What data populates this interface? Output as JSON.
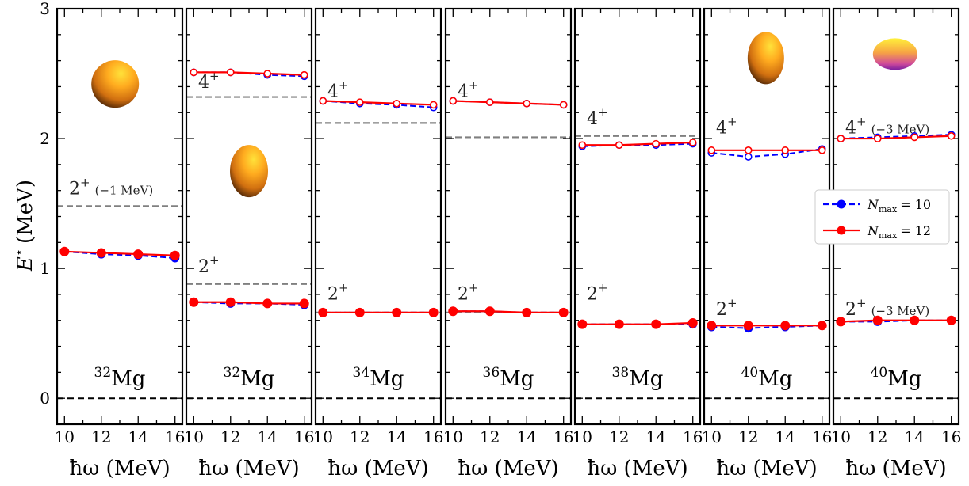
{
  "chart_data": {
    "type": "line",
    "ylabel": "E* (MeV)",
    "ylabel_parts": {
      "symbol": "E",
      "superscript": "⋆",
      "unit": "(MeV)"
    },
    "xlabel": "ħω (MeV)",
    "ylim": [
      -0.2,
      3.0
    ],
    "yticks": [
      "0",
      "1",
      "2",
      "3"
    ],
    "xlim": [
      9.6,
      16.4
    ],
    "xticks": [
      "10",
      "12",
      "14",
      "16"
    ],
    "legend": {
      "placement": "right-middle",
      "entries": [
        {
          "label": "N_max = 10",
          "symbol": "N",
          "subscript": "max",
          "value": "= 10",
          "color": "#0000ff",
          "linestyle": "dashed"
        },
        {
          "label": "N_max = 12",
          "symbol": "N",
          "subscript": "max",
          "value": "= 12",
          "color": "#ff0000",
          "linestyle": "solid"
        }
      ]
    },
    "panels": [
      {
        "nucleus": {
          "mass": "32",
          "element": "Mg"
        },
        "shape": "sphere",
        "experiment": [
          {
            "value": 1.48,
            "color": "#808080"
          }
        ],
        "labels": [
          {
            "text": "2",
            "sup": "+",
            "note": "(−1 MeV)",
            "y": 1.62
          }
        ],
        "series": [
          {
            "name": "N_max = 10",
            "filled": true,
            "x": [
              10,
              12,
              14,
              16
            ],
            "values": [
              1.13,
              1.11,
              1.1,
              1.08
            ]
          },
          {
            "name": "N_max = 12",
            "filled": true,
            "x": [
              10,
              12,
              14,
              16
            ],
            "values": [
              1.13,
              1.12,
              1.11,
              1.1
            ]
          }
        ]
      },
      {
        "nucleus": {
          "mass": "32",
          "element": "Mg"
        },
        "shape": "prolate",
        "experiment": [
          {
            "value": 0.88,
            "color": "#808080"
          },
          {
            "value": 2.32,
            "color": "#808080"
          }
        ],
        "labels": [
          {
            "text": "2",
            "sup": "+",
            "note": "",
            "y": 1.02
          },
          {
            "text": "4",
            "sup": "+",
            "note": "",
            "y": 2.44
          }
        ],
        "series": [
          {
            "name": "N_max = 10",
            "filled": true,
            "x": [
              10,
              12,
              14,
              16
            ],
            "values": [
              0.74,
              0.73,
              0.73,
              0.72
            ]
          },
          {
            "name": "N_max = 12",
            "filled": true,
            "x": [
              10,
              12,
              14,
              16
            ],
            "values": [
              0.74,
              0.74,
              0.73,
              0.73
            ]
          },
          {
            "name": "N_max = 10",
            "filled": false,
            "x": [
              10,
              12,
              14,
              16
            ],
            "values": [
              2.51,
              2.51,
              2.49,
              2.48
            ]
          },
          {
            "name": "N_max = 12",
            "filled": false,
            "x": [
              10,
              12,
              14,
              16
            ],
            "values": [
              2.51,
              2.51,
              2.5,
              2.49
            ]
          }
        ]
      },
      {
        "nucleus": {
          "mass": "34",
          "element": "Mg"
        },
        "shape": "",
        "experiment": [
          {
            "value": 0.66,
            "color": "#808080"
          },
          {
            "value": 2.12,
            "color": "#808080"
          }
        ],
        "labels": [
          {
            "text": "2",
            "sup": "+",
            "note": "",
            "y": 0.81
          },
          {
            "text": "4",
            "sup": "+",
            "note": "",
            "y": 2.37
          }
        ],
        "series": [
          {
            "name": "N_max = 10",
            "filled": true,
            "x": [
              10,
              12,
              14,
              16
            ],
            "values": [
              0.66,
              0.66,
              0.66,
              0.66
            ]
          },
          {
            "name": "N_max = 12",
            "filled": true,
            "x": [
              10,
              12,
              14,
              16
            ],
            "values": [
              0.66,
              0.66,
              0.66,
              0.66
            ]
          },
          {
            "name": "N_max = 10",
            "filled": false,
            "x": [
              10,
              12,
              14,
              16
            ],
            "values": [
              2.29,
              2.27,
              2.26,
              2.24
            ]
          },
          {
            "name": "N_max = 12",
            "filled": false,
            "x": [
              10,
              12,
              14,
              16
            ],
            "values": [
              2.29,
              2.28,
              2.27,
              2.26
            ]
          }
        ]
      },
      {
        "nucleus": {
          "mass": "36",
          "element": "Mg"
        },
        "shape": "",
        "experiment": [
          {
            "value": 0.66,
            "color": "#808080"
          },
          {
            "value": 2.01,
            "color": "#808080"
          }
        ],
        "labels": [
          {
            "text": "2",
            "sup": "+",
            "note": "",
            "y": 0.81
          },
          {
            "text": "4",
            "sup": "+",
            "note": "",
            "y": 2.37
          }
        ],
        "series": [
          {
            "name": "N_max = 10",
            "filled": true,
            "x": [
              10,
              12,
              14,
              16
            ],
            "values": [
              0.67,
              0.67,
              0.66,
              0.66
            ]
          },
          {
            "name": "N_max = 12",
            "filled": true,
            "x": [
              10,
              12,
              14,
              16
            ],
            "values": [
              0.67,
              0.67,
              0.66,
              0.66
            ]
          },
          {
            "name": "N_max = 10",
            "filled": false,
            "x": [
              10,
              12,
              14,
              16
            ],
            "values": [
              2.29,
              2.28,
              2.27,
              2.26
            ]
          },
          {
            "name": "N_max = 12",
            "filled": false,
            "x": [
              10,
              12,
              14,
              16
            ],
            "values": [
              2.29,
              2.28,
              2.27,
              2.26
            ]
          }
        ]
      },
      {
        "nucleus": {
          "mass": "38",
          "element": "Mg"
        },
        "shape": "",
        "experiment": [
          {
            "value": 2.02,
            "color": "#808080"
          }
        ],
        "labels": [
          {
            "text": "2",
            "sup": "+",
            "note": "",
            "y": 0.81
          },
          {
            "text": "4",
            "sup": "+",
            "note": "",
            "y": 2.16
          }
        ],
        "series": [
          {
            "name": "N_max = 10",
            "filled": true,
            "x": [
              10,
              12,
              14,
              16
            ],
            "values": [
              0.57,
              0.57,
              0.57,
              0.57
            ]
          },
          {
            "name": "N_max = 12",
            "filled": true,
            "x": [
              10,
              12,
              14,
              16
            ],
            "values": [
              0.57,
              0.57,
              0.57,
              0.58
            ]
          },
          {
            "name": "N_max = 10",
            "filled": false,
            "x": [
              10,
              12,
              14,
              16
            ],
            "values": [
              1.94,
              1.95,
              1.95,
              1.96
            ]
          },
          {
            "name": "N_max = 12",
            "filled": false,
            "x": [
              10,
              12,
              14,
              16
            ],
            "values": [
              1.95,
              1.95,
              1.96,
              1.97
            ]
          }
        ]
      },
      {
        "nucleus": {
          "mass": "40",
          "element": "Mg"
        },
        "shape": "prolate-tall",
        "experiment": [],
        "labels": [
          {
            "text": "2",
            "sup": "+",
            "note": "",
            "y": 0.69
          },
          {
            "text": "4",
            "sup": "+",
            "note": "",
            "y": 2.09
          }
        ],
        "series": [
          {
            "name": "N_max = 10",
            "filled": true,
            "x": [
              10,
              12,
              14,
              16
            ],
            "values": [
              0.55,
              0.54,
              0.55,
              0.56
            ]
          },
          {
            "name": "N_max = 12",
            "filled": true,
            "x": [
              10,
              12,
              14,
              16
            ],
            "values": [
              0.56,
              0.56,
              0.56,
              0.56
            ]
          },
          {
            "name": "N_max = 10",
            "filled": false,
            "x": [
              10,
              12,
              14,
              16
            ],
            "values": [
              1.89,
              1.86,
              1.88,
              1.92
            ]
          },
          {
            "name": "N_max = 12",
            "filled": false,
            "x": [
              10,
              12,
              14,
              16
            ],
            "values": [
              1.91,
              1.91,
              1.91,
              1.91
            ]
          }
        ]
      },
      {
        "nucleus": {
          "mass": "40",
          "element": "Mg"
        },
        "shape": "oblate",
        "experiment": [],
        "labels": [
          {
            "text": "2",
            "sup": "+",
            "note": "(−3 MeV)",
            "y": 0.69
          },
          {
            "text": "4",
            "sup": "+",
            "note": "(−3 MeV)",
            "y": 2.09
          }
        ],
        "series": [
          {
            "name": "N_max = 10",
            "filled": true,
            "x": [
              10,
              12,
              14,
              16
            ],
            "values": [
              0.59,
              0.59,
              0.6,
              0.6
            ]
          },
          {
            "name": "N_max = 12",
            "filled": true,
            "x": [
              10,
              12,
              14,
              16
            ],
            "values": [
              0.59,
              0.6,
              0.6,
              0.6
            ]
          },
          {
            "name": "N_max = 10",
            "filled": false,
            "x": [
              10,
              12,
              14,
              16
            ],
            "values": [
              2.0,
              2.01,
              2.02,
              2.03
            ]
          },
          {
            "name": "N_max = 12",
            "filled": false,
            "x": [
              10,
              12,
              14,
              16
            ],
            "values": [
              2.0,
              2.0,
              2.01,
              2.02
            ]
          }
        ]
      }
    ]
  }
}
